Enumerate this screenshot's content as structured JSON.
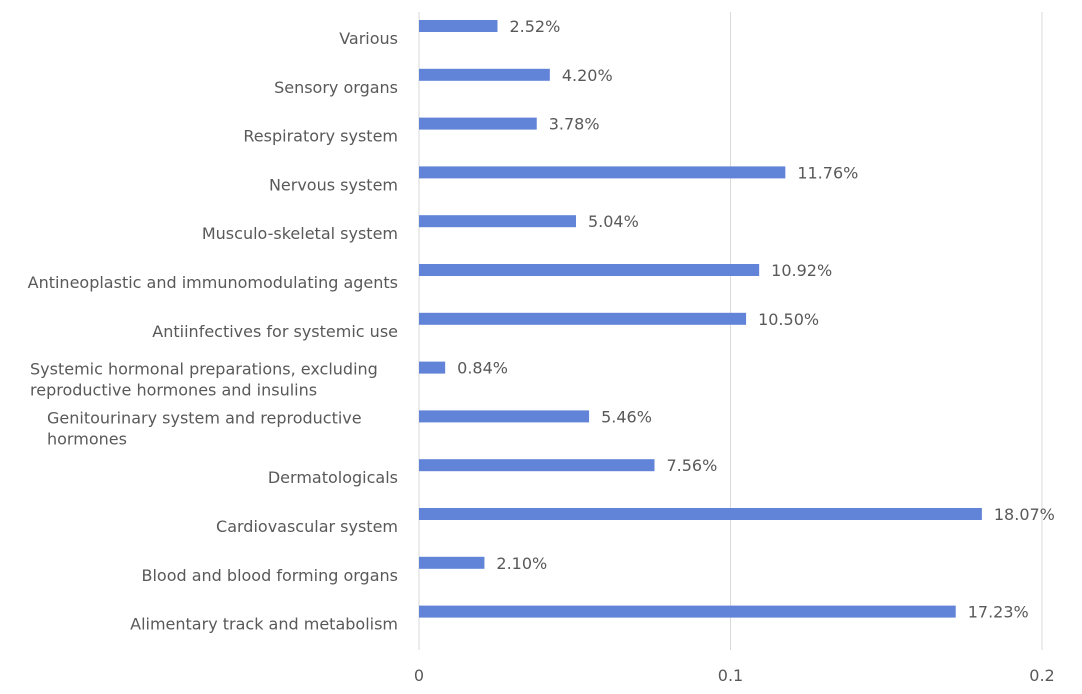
{
  "chart_data": {
    "type": "bar",
    "orientation": "horizontal",
    "categories": [
      "Various",
      "Sensory organs",
      "Respiratory system",
      "Nervous system",
      "Musculo-skeletal system",
      "Antineoplastic and immunomodulating agents",
      "Antiinfectives for systemic use",
      "Systemic hormonal preparations, excluding reproductive hormones and insulins",
      "Genitourinary system and reproductive hormones",
      "Dermatologicals",
      "Cardiovascular system",
      "Blood and blood forming organs",
      "Alimentary track and metabolism"
    ],
    "category_lines": [
      [
        "Various"
      ],
      [
        "Sensory organs"
      ],
      [
        "Respiratory system"
      ],
      [
        "Nervous system"
      ],
      [
        "Musculo-skeletal system"
      ],
      [
        "Antineoplastic and immunomodulating agents"
      ],
      [
        "Antiinfectives for systemic use"
      ],
      [
        "Systemic hormonal preparations, excluding",
        "reproductive hormones and insulins"
      ],
      [
        "Genitourinary system and reproductive",
        "hormones"
      ],
      [
        "Dermatologicals"
      ],
      [
        "Cardiovascular system"
      ],
      [
        "Blood and blood forming organs"
      ],
      [
        "Alimentary track and metabolism"
      ]
    ],
    "values": [
      0.0252,
      0.042,
      0.0378,
      0.1176,
      0.0504,
      0.1092,
      0.105,
      0.0084,
      0.0546,
      0.0756,
      0.1807,
      0.021,
      0.1723
    ],
    "data_labels": [
      "2.52%",
      "4.20%",
      "3.78%",
      "11.76%",
      "5.04%",
      "10.92%",
      "10.50%",
      "0.84%",
      "5.46%",
      "7.56%",
      "18.07%",
      "2.10%",
      "17.23%"
    ],
    "xlim": [
      0,
      0.2
    ],
    "x_ticks": [
      0,
      0.1,
      0.2
    ],
    "x_tick_labels": [
      "0",
      "0.1",
      "0.2"
    ],
    "title": "",
    "xlabel": "",
    "ylabel": "",
    "grid": "vertical",
    "legend": "none",
    "colors": {
      "bar": "#6183d8",
      "grid": "#d9d9d9",
      "text": "#595959"
    }
  }
}
